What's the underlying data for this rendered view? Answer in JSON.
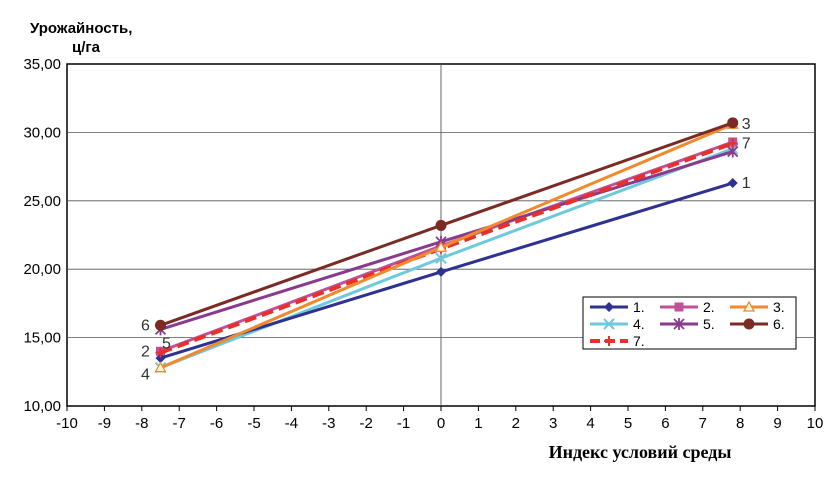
{
  "chart_data": {
    "type": "line",
    "ylabel_line1": "Урожайность,",
    "ylabel_line2": "ц/га",
    "xlabel": "Индекс условий среды",
    "xlim": [
      -10,
      10
    ],
    "ylim": [
      10,
      35
    ],
    "x_ticks": [
      "-10",
      "-9",
      "-8",
      "-7",
      "-6",
      "-5",
      "-4",
      "-3",
      "-2",
      "-1",
      "0",
      "1",
      "2",
      "3",
      "4",
      "5",
      "6",
      "7",
      "8",
      "9",
      "10"
    ],
    "y_ticks": [
      "10,00",
      "15,00",
      "20,00",
      "25,00",
      "30,00",
      "35,00"
    ],
    "grid": "horizontal",
    "legend_position": "bottom-right",
    "series": [
      {
        "name": "1.",
        "color": "#2e3092",
        "marker": "diamond",
        "x": [
          -7.5,
          0,
          7.8
        ],
        "y": [
          13.5,
          19.8,
          26.3
        ],
        "end_label": "1"
      },
      {
        "name": "2.",
        "color": "#c0509a",
        "marker": "square",
        "x": [
          -7.5,
          0,
          7.8
        ],
        "y": [
          14.0,
          21.7,
          29.3
        ],
        "start_label": "2"
      },
      {
        "name": "3.",
        "color": "#f08a2c",
        "marker": "triangle",
        "x": [
          -7.5,
          0,
          7.8
        ],
        "y": [
          12.8,
          21.6,
          30.6
        ],
        "end_label": "3"
      },
      {
        "name": "4.",
        "color": "#6ec9dd",
        "marker": "x",
        "x": [
          -7.5,
          0,
          7.8
        ],
        "y": [
          12.8,
          20.8,
          28.8
        ],
        "start_label": "4"
      },
      {
        "name": "5.",
        "color": "#8a3a8e",
        "marker": "asterisk",
        "x": [
          -7.5,
          0,
          7.8
        ],
        "y": [
          15.6,
          22.0,
          28.6
        ],
        "start_label": "5"
      },
      {
        "name": "6.",
        "color": "#7b2a24",
        "marker": "circle",
        "x": [
          -7.5,
          0,
          7.8
        ],
        "y": [
          15.9,
          23.2,
          30.7
        ],
        "start_label": "6"
      },
      {
        "name": "7.",
        "color": "#e8302a",
        "marker": "plus",
        "dashed": true,
        "x": [
          -7.5,
          0,
          7.8
        ],
        "y": [
          13.9,
          21.5,
          29.2
        ],
        "end_label": "7"
      }
    ]
  }
}
